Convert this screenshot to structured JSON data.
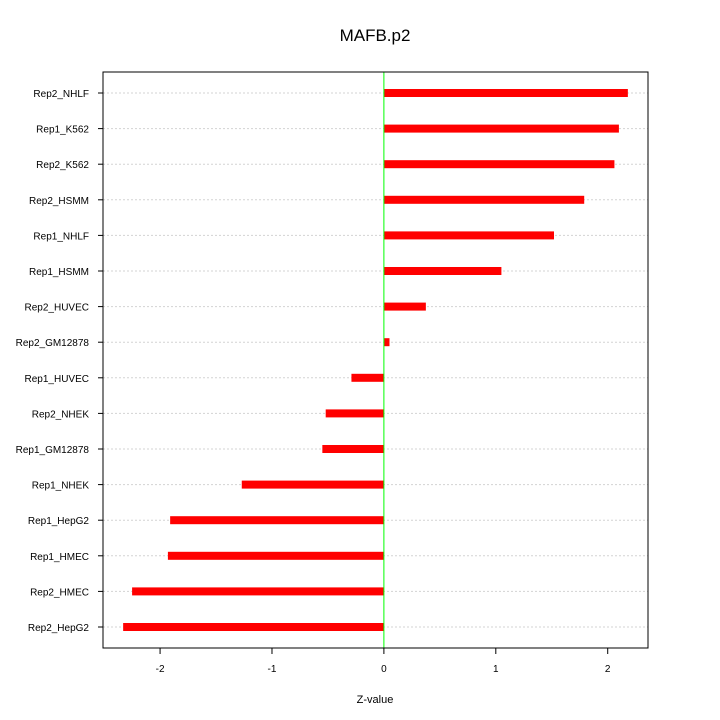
{
  "chart_data": {
    "type": "bar",
    "orientation": "horizontal",
    "title": "MAFB.p2",
    "xlabel": "Z-value",
    "ylabel": "",
    "xlim": [
      -2.51,
      2.36
    ],
    "xticks": [
      -2,
      -1,
      0,
      1,
      2
    ],
    "xtick_labels": [
      "-2",
      "-1",
      "0",
      "1",
      "2"
    ],
    "grid": "horizontal dotted",
    "reference_line": 0,
    "colors": {
      "bar": "#ff0000",
      "reference": "#00ff00",
      "grid": "#d3d3d3"
    },
    "categories": [
      "Rep2_NHLF",
      "Rep1_K562",
      "Rep2_K562",
      "Rep2_HSMM",
      "Rep1_NHLF",
      "Rep1_HSMM",
      "Rep2_HUVEC",
      "Rep2_GM12878",
      "Rep1_HUVEC",
      "Rep2_NHEK",
      "Rep1_GM12878",
      "Rep1_NHEK",
      "Rep1_HepG2",
      "Rep1_HMEC",
      "Rep2_HMEC",
      "Rep2_HepG2"
    ],
    "values": [
      2.18,
      2.1,
      2.06,
      1.79,
      1.52,
      1.05,
      0.375,
      0.05,
      -0.29,
      -0.52,
      -0.55,
      -1.27,
      -1.91,
      -1.93,
      -2.25,
      -2.33
    ]
  }
}
